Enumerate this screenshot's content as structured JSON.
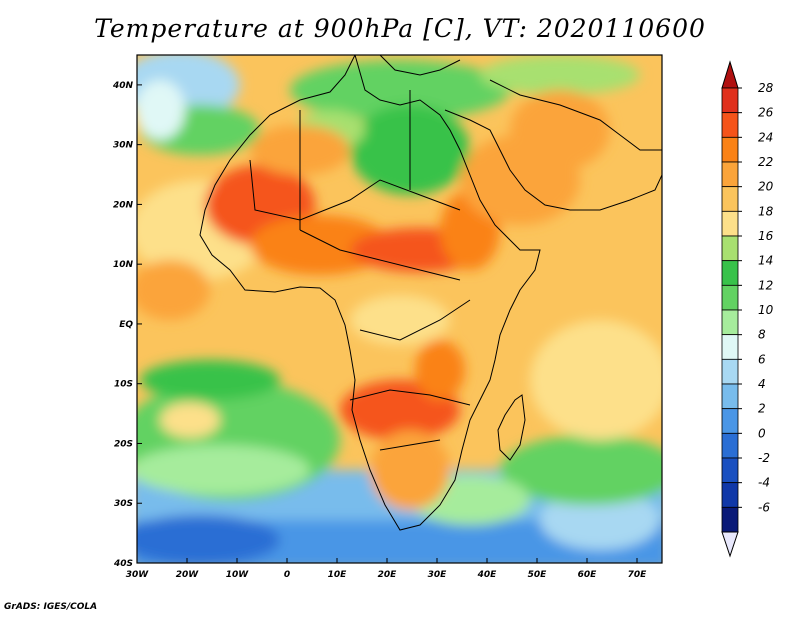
{
  "title": "Temperature at 900hPa [C], VT: 2020110600",
  "credit": "GrADS: IGES/COLA",
  "map": {
    "lon_range": [
      -30,
      75
    ],
    "lat_range": [
      -40,
      45
    ],
    "lon_ticks": [
      {
        "value": -30,
        "label": "30W"
      },
      {
        "value": -20,
        "label": "20W"
      },
      {
        "value": -10,
        "label": "10W"
      },
      {
        "value": 0,
        "label": "0"
      },
      {
        "value": 10,
        "label": "10E"
      },
      {
        "value": 20,
        "label": "20E"
      },
      {
        "value": 30,
        "label": "30E"
      },
      {
        "value": 40,
        "label": "40E"
      },
      {
        "value": 50,
        "label": "50E"
      },
      {
        "value": 60,
        "label": "60E"
      },
      {
        "value": 70,
        "label": "70E"
      }
    ],
    "lat_ticks": [
      {
        "value": 40,
        "label": "40N"
      },
      {
        "value": 30,
        "label": "30N"
      },
      {
        "value": 20,
        "label": "20N"
      },
      {
        "value": 10,
        "label": "10N"
      },
      {
        "value": 0,
        "label": "EQ"
      },
      {
        "value": -10,
        "label": "10S"
      },
      {
        "value": -20,
        "label": "20S"
      },
      {
        "value": -30,
        "label": "30S"
      },
      {
        "value": -40,
        "label": "40S"
      }
    ]
  },
  "colorbar": {
    "levels": [
      {
        "label": "28",
        "color": "#e0301c"
      },
      {
        "label": "26",
        "color": "#f5541a"
      },
      {
        "label": "24",
        "color": "#fa8216"
      },
      {
        "label": "22",
        "color": "#fba43a"
      },
      {
        "label": "20",
        "color": "#fbc45c"
      },
      {
        "label": "18",
        "color": "#fde08a"
      },
      {
        "label": "16",
        "color": "#a8e070"
      },
      {
        "label": "14",
        "color": "#38c24a"
      },
      {
        "label": "12",
        "color": "#62d262"
      },
      {
        "label": "10",
        "color": "#a6ec9c"
      },
      {
        "label": "8",
        "color": "#e0f8f6"
      },
      {
        "label": "6",
        "color": "#a8d8f2"
      },
      {
        "label": "4",
        "color": "#78bcec"
      },
      {
        "label": "2",
        "color": "#4a96e6"
      },
      {
        "label": "0",
        "color": "#2a6ed4"
      },
      {
        "label": "-2",
        "color": "#1a50c0"
      },
      {
        "label": "-4",
        "color": "#1038a8"
      },
      {
        "label": "-6",
        "color": "#0a1a78"
      }
    ],
    "top_cap_color": "#b01010",
    "bottom_cap_color": "#e8e8fc"
  }
}
